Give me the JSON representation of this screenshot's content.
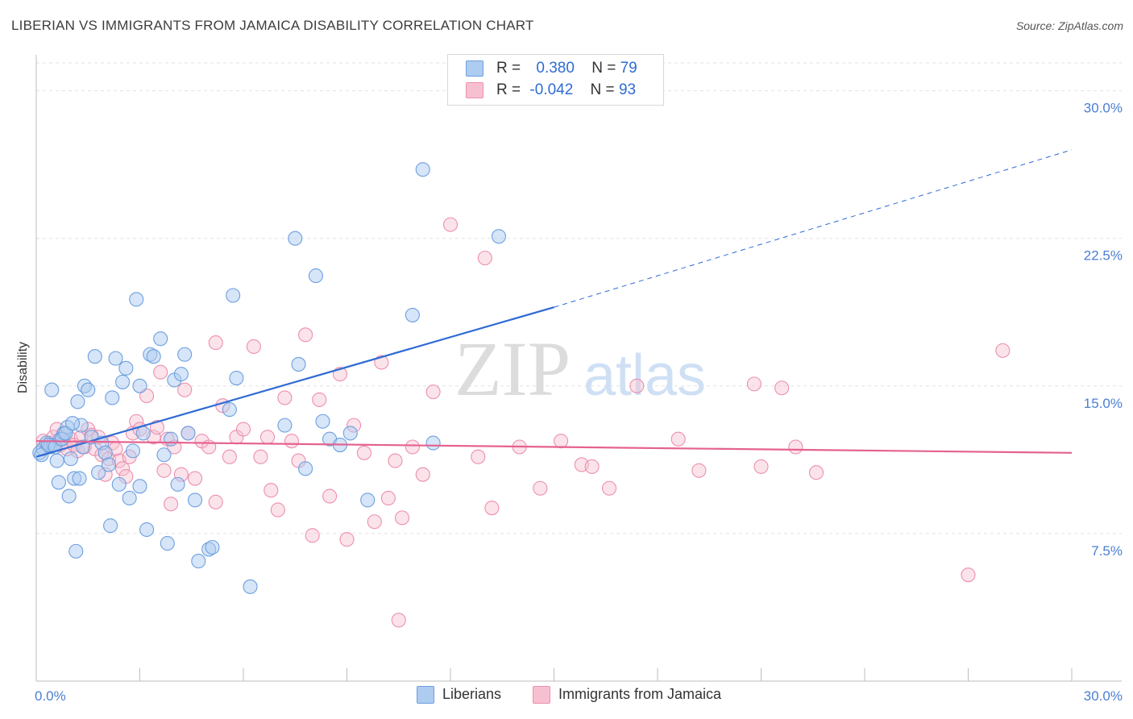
{
  "title": "LIBERIAN VS IMMIGRANTS FROM JAMAICA DISABILITY CORRELATION CHART",
  "source": "Source: ZipAtlas.com",
  "watermark": {
    "zip": "ZIP",
    "atlas": "atlas"
  },
  "legend": {
    "row1": {
      "r_label": "R =",
      "r_value": "0.380",
      "n_label": "N =",
      "n_value": "79"
    },
    "row2": {
      "r_label": "R =",
      "r_value": "-0.042",
      "n_label": "N =",
      "n_value": "93"
    }
  },
  "bottom_legend": {
    "series1": "Liberians",
    "series2": "Immigrants from Jamaica"
  },
  "colors": {
    "blue_fill": "#aecbf0",
    "blue_stroke": "#6d9fe0",
    "blue_line": "#2f6bd4",
    "pink_fill": "#f7c0d0",
    "pink_stroke": "#ec8faf",
    "pink_line": "#e5628f",
    "axis_text": "#4a7fd0",
    "grid": "#e2e2e2"
  },
  "chart_data": {
    "type": "scatter",
    "title": "LIBERIAN VS IMMIGRANTS FROM JAMAICA DISABILITY CORRELATION CHART",
    "xlabel": "",
    "ylabel": "Disability",
    "xlim": [
      0,
      30
    ],
    "ylim": [
      0,
      31.5
    ],
    "x_tick_labels": [
      "0.0%",
      "30.0%"
    ],
    "y_ticks": [
      7.5,
      15.0,
      22.5,
      30.0
    ],
    "y_tick_labels": [
      "7.5%",
      "15.0%",
      "22.5%",
      "30.0%"
    ],
    "grid": true,
    "legend_position": "top-center",
    "series": [
      {
        "name": "Liberians",
        "r": 0.38,
        "n": 79,
        "trend": {
          "x0": 0.0,
          "y0": 11.4,
          "x1": 15.0,
          "y1": 19.0,
          "dashed_to_x": 30.0,
          "dashed_to_y": 27.0
        },
        "points": [
          [
            0.1,
            11.6
          ],
          [
            0.2,
            11.8
          ],
          [
            0.3,
            12.1
          ],
          [
            0.4,
            11.9
          ],
          [
            0.5,
            12.0
          ],
          [
            0.6,
            11.2
          ],
          [
            0.7,
            12.3
          ],
          [
            0.8,
            12.6
          ],
          [
            0.9,
            12.9
          ],
          [
            1.0,
            11.3
          ],
          [
            1.1,
            10.3
          ],
          [
            1.2,
            14.2
          ],
          [
            1.3,
            13.0
          ],
          [
            1.4,
            15.0
          ],
          [
            1.5,
            14.8
          ],
          [
            1.6,
            12.4
          ],
          [
            1.7,
            16.5
          ],
          [
            1.8,
            10.6
          ],
          [
            1.9,
            12.1
          ],
          [
            2.0,
            11.6
          ],
          [
            2.1,
            11.0
          ],
          [
            2.2,
            14.4
          ],
          [
            2.3,
            16.4
          ],
          [
            2.4,
            10.0
          ],
          [
            2.5,
            15.2
          ],
          [
            2.6,
            15.9
          ],
          [
            2.7,
            9.3
          ],
          [
            2.8,
            11.7
          ],
          [
            2.9,
            19.4
          ],
          [
            3.0,
            15.0
          ],
          [
            3.1,
            12.6
          ],
          [
            3.2,
            7.7
          ],
          [
            3.3,
            16.6
          ],
          [
            3.4,
            16.5
          ],
          [
            3.6,
            17.4
          ],
          [
            3.7,
            11.5
          ],
          [
            3.8,
            7.0
          ],
          [
            3.9,
            12.3
          ],
          [
            4.0,
            15.3
          ],
          [
            4.1,
            10.0
          ],
          [
            4.2,
            15.6
          ],
          [
            4.3,
            16.6
          ],
          [
            4.4,
            12.6
          ],
          [
            4.6,
            9.2
          ],
          [
            4.7,
            6.1
          ],
          [
            5.0,
            6.7
          ],
          [
            5.1,
            6.8
          ],
          [
            5.6,
            13.8
          ],
          [
            5.7,
            19.6
          ],
          [
            5.8,
            15.4
          ],
          [
            6.2,
            4.8
          ],
          [
            7.2,
            13.0
          ],
          [
            7.5,
            22.5
          ],
          [
            7.6,
            16.1
          ],
          [
            7.8,
            10.8
          ],
          [
            8.1,
            20.6
          ],
          [
            8.3,
            13.2
          ],
          [
            8.5,
            12.3
          ],
          [
            8.8,
            12.0
          ],
          [
            9.1,
            12.6
          ],
          [
            9.6,
            9.2
          ],
          [
            10.9,
            18.6
          ],
          [
            11.2,
            26.0
          ],
          [
            11.5,
            12.1
          ],
          [
            13.4,
            22.6
          ],
          [
            0.15,
            11.5
          ],
          [
            0.35,
            12.0
          ],
          [
            0.45,
            14.8
          ],
          [
            0.55,
            11.9
          ],
          [
            0.65,
            10.1
          ],
          [
            0.75,
            12.3
          ],
          [
            0.85,
            12.6
          ],
          [
            0.95,
            9.4
          ],
          [
            1.05,
            13.1
          ],
          [
            1.15,
            6.6
          ],
          [
            1.25,
            10.3
          ],
          [
            1.35,
            11.9
          ],
          [
            2.15,
            7.9
          ],
          [
            3.0,
            9.9
          ]
        ]
      },
      {
        "name": "Immigrants from Jamaica",
        "r": -0.042,
        "n": 93,
        "trend": {
          "x0": 0.0,
          "y0": 12.2,
          "x1": 30.0,
          "y1": 11.6
        },
        "points": [
          [
            0.2,
            12.2
          ],
          [
            0.4,
            12.1
          ],
          [
            0.5,
            12.4
          ],
          [
            0.6,
            12.8
          ],
          [
            0.7,
            12.0
          ],
          [
            0.8,
            12.6
          ],
          [
            0.9,
            11.8
          ],
          [
            1.0,
            12.3
          ],
          [
            1.1,
            12.0
          ],
          [
            1.2,
            11.7
          ],
          [
            1.3,
            12.4
          ],
          [
            1.4,
            11.9
          ],
          [
            1.5,
            12.8
          ],
          [
            1.6,
            12.5
          ],
          [
            1.7,
            11.8
          ],
          [
            1.8,
            12.4
          ],
          [
            1.9,
            11.5
          ],
          [
            2.0,
            10.5
          ],
          [
            2.1,
            11.3
          ],
          [
            2.2,
            12.1
          ],
          [
            2.3,
            11.8
          ],
          [
            2.4,
            11.2
          ],
          [
            2.5,
            10.8
          ],
          [
            2.6,
            10.4
          ],
          [
            2.7,
            11.4
          ],
          [
            2.8,
            12.6
          ],
          [
            2.9,
            13.2
          ],
          [
            3.0,
            12.8
          ],
          [
            3.2,
            14.5
          ],
          [
            3.4,
            12.4
          ],
          [
            3.5,
            12.9
          ],
          [
            3.6,
            15.7
          ],
          [
            3.7,
            10.7
          ],
          [
            3.8,
            12.3
          ],
          [
            3.9,
            9.0
          ],
          [
            4.0,
            11.9
          ],
          [
            4.2,
            10.5
          ],
          [
            4.3,
            14.8
          ],
          [
            4.4,
            12.6
          ],
          [
            4.6,
            10.3
          ],
          [
            4.8,
            12.2
          ],
          [
            5.0,
            11.9
          ],
          [
            5.2,
            9.1
          ],
          [
            5.4,
            14.0
          ],
          [
            5.6,
            11.4
          ],
          [
            5.8,
            12.4
          ],
          [
            6.0,
            12.8
          ],
          [
            6.3,
            17.0
          ],
          [
            6.5,
            11.4
          ],
          [
            6.7,
            12.4
          ],
          [
            6.8,
            9.7
          ],
          [
            7.0,
            8.7
          ],
          [
            7.2,
            14.4
          ],
          [
            7.4,
            12.2
          ],
          [
            7.6,
            11.2
          ],
          [
            7.8,
            17.6
          ],
          [
            8.0,
            7.4
          ],
          [
            8.2,
            14.3
          ],
          [
            8.5,
            9.4
          ],
          [
            8.8,
            15.6
          ],
          [
            9.0,
            7.2
          ],
          [
            9.2,
            13.0
          ],
          [
            9.5,
            11.6
          ],
          [
            9.8,
            8.1
          ],
          [
            10.0,
            16.2
          ],
          [
            10.2,
            9.3
          ],
          [
            10.4,
            11.2
          ],
          [
            10.6,
            8.3
          ],
          [
            10.9,
            11.9
          ],
          [
            11.2,
            10.5
          ],
          [
            11.5,
            14.7
          ],
          [
            12.0,
            23.2
          ],
          [
            12.8,
            11.4
          ],
          [
            13.0,
            21.5
          ],
          [
            13.2,
            8.8
          ],
          [
            14.0,
            11.9
          ],
          [
            14.6,
            9.8
          ],
          [
            15.2,
            12.2
          ],
          [
            15.8,
            11.0
          ],
          [
            16.1,
            10.9
          ],
          [
            16.6,
            9.8
          ],
          [
            17.4,
            15.0
          ],
          [
            18.6,
            12.3
          ],
          [
            19.2,
            10.7
          ],
          [
            20.8,
            15.1
          ],
          [
            21.0,
            10.9
          ],
          [
            21.6,
            14.9
          ],
          [
            22.0,
            11.9
          ],
          [
            22.6,
            10.6
          ],
          [
            27.0,
            5.4
          ],
          [
            28.0,
            16.8
          ],
          [
            10.5,
            3.1
          ],
          [
            5.2,
            17.2
          ]
        ]
      }
    ]
  }
}
